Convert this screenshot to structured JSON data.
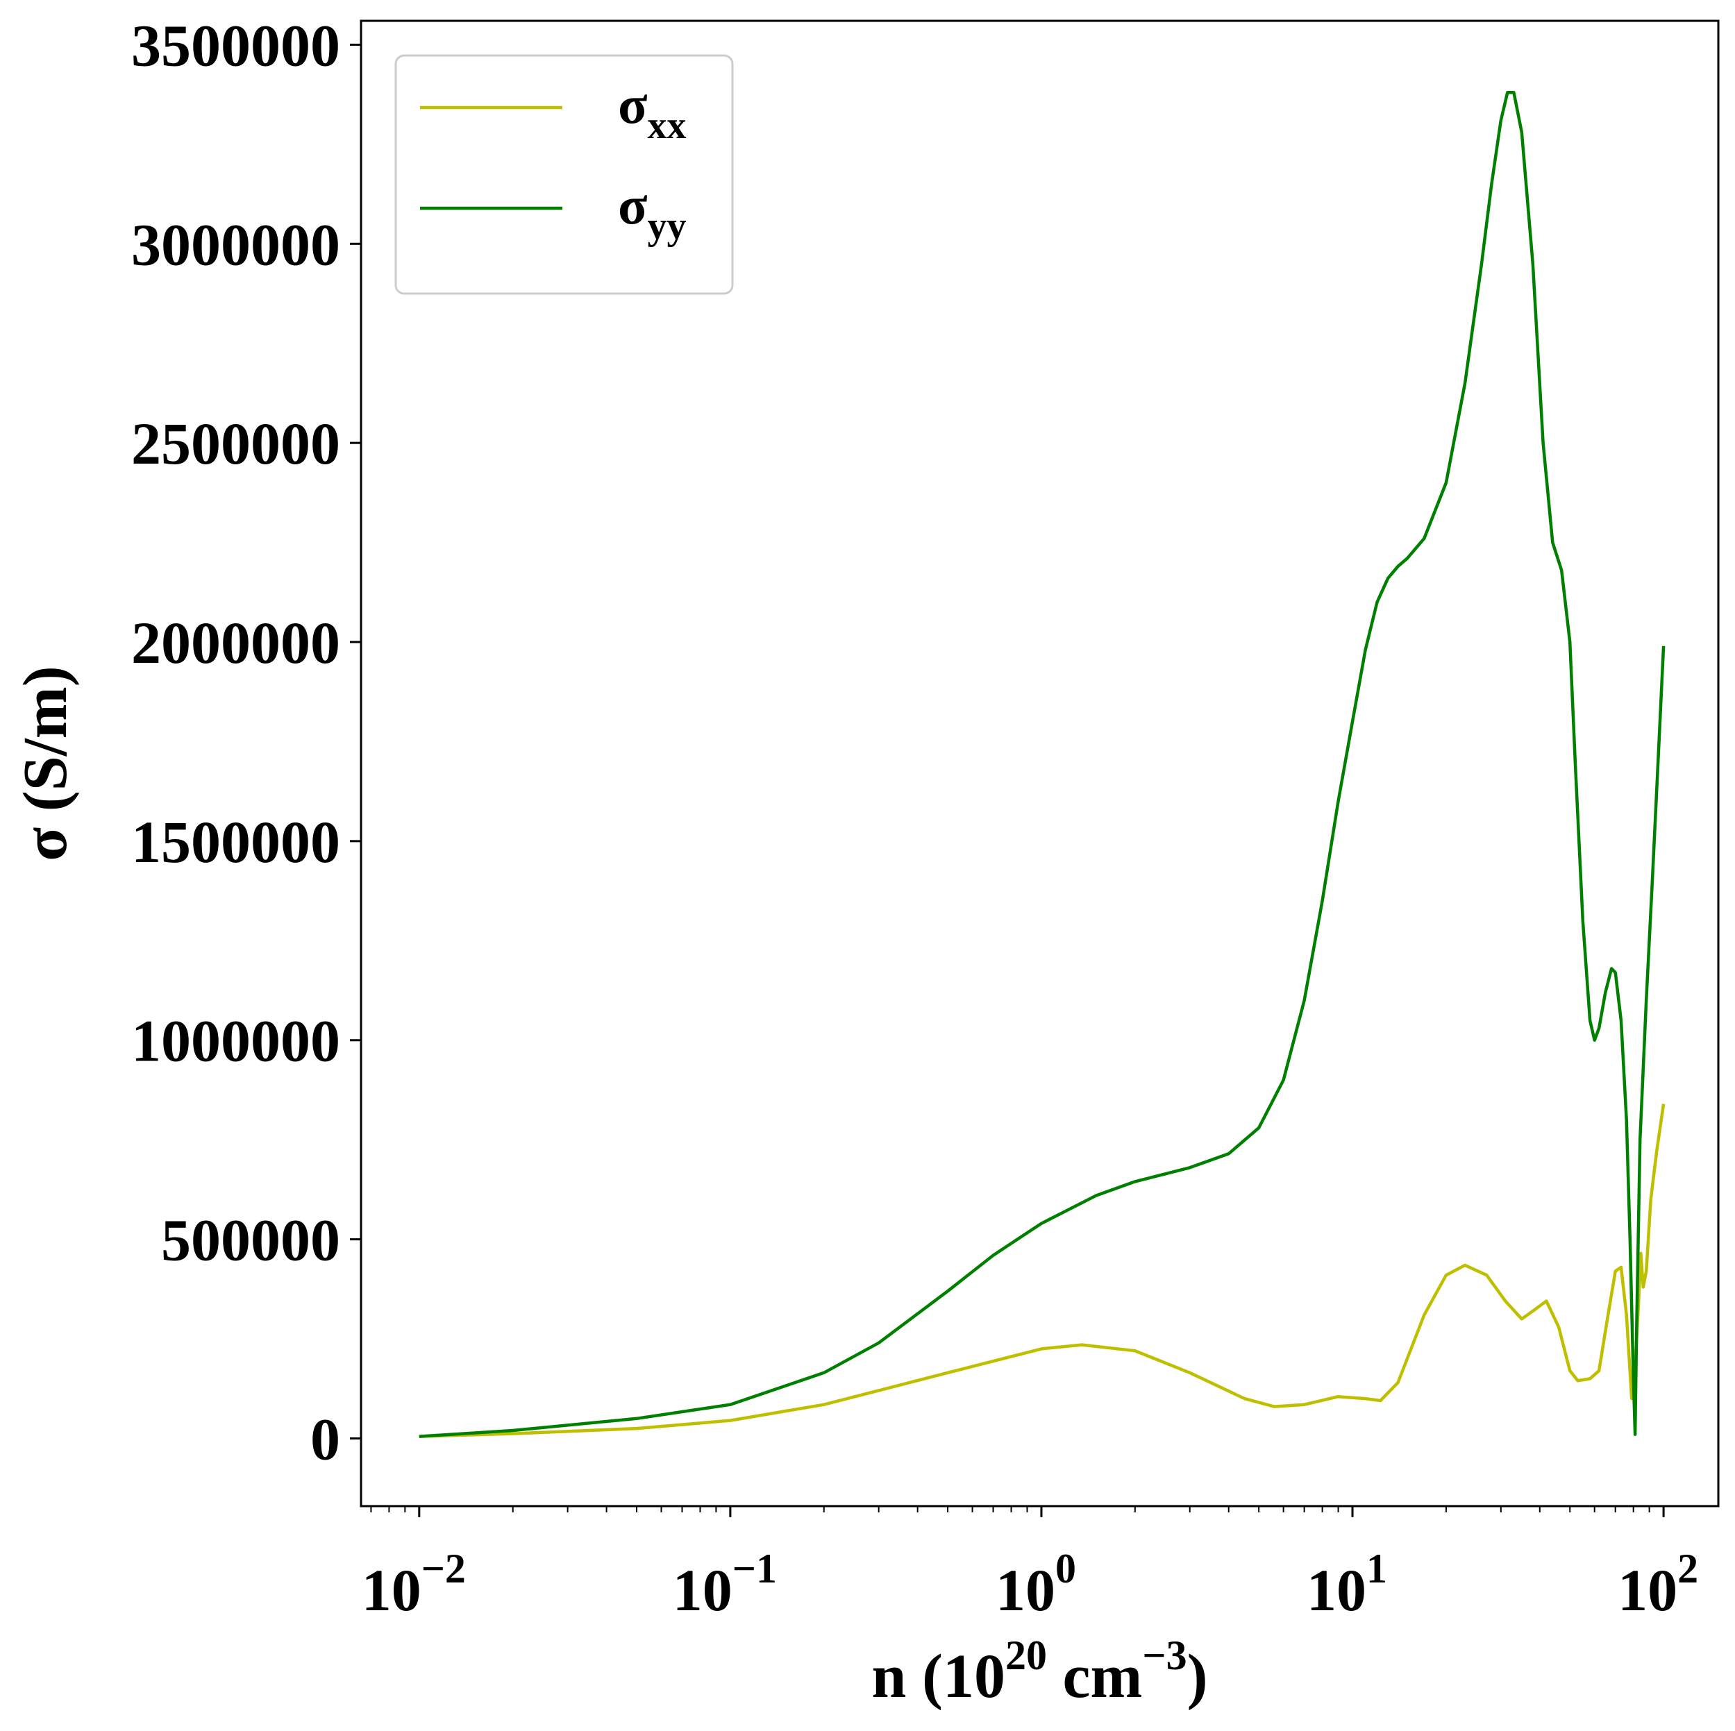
{
  "chart_data": {
    "type": "line",
    "x_scale": "log",
    "xlim": [
      0.0065,
      150
    ],
    "ylim": [
      -170000,
      3560000
    ],
    "xlabel": {
      "base": "n (10",
      "exp": "20",
      "mid": " cm",
      "exp2": "−3",
      "tail": ")"
    },
    "ylabel": "σ (S/m)",
    "x_ticks": [
      {
        "base": "10",
        "exp": "−2",
        "value": 0.01
      },
      {
        "base": "10",
        "exp": "−1",
        "value": 0.1
      },
      {
        "base": "10",
        "exp": "0",
        "value": 1
      },
      {
        "base": "10",
        "exp": "1",
        "value": 10
      },
      {
        "base": "10",
        "exp": "2",
        "value": 100
      }
    ],
    "y_ticks": [
      {
        "label": "0",
        "value": 0
      },
      {
        "label": "500000",
        "value": 500000
      },
      {
        "label": "1000000",
        "value": 1000000
      },
      {
        "label": "1500000",
        "value": 1500000
      },
      {
        "label": "2000000",
        "value": 2000000
      },
      {
        "label": "2500000",
        "value": 2500000
      },
      {
        "label": "3000000",
        "value": 3000000
      },
      {
        "label": "3500000",
        "value": 3500000
      }
    ],
    "grid": false,
    "legend_position": "top-left",
    "series": [
      {
        "name": "σ",
        "name_sub": "xx",
        "color": "#bfbf00",
        "x": [
          0.01,
          0.02,
          0.05,
          0.1,
          0.2,
          0.5,
          1.0,
          1.35,
          2.0,
          3.0,
          4.5,
          5.6,
          7.0,
          9.0,
          11.0,
          12.3,
          14.0,
          17.0,
          20.0,
          23.0,
          27.0,
          31.0,
          35.0,
          38.0,
          42.0,
          46.0,
          50.0,
          53.0,
          58.0,
          62.0,
          66.0,
          70.0,
          73.0,
          76.0,
          79.0,
          81.0,
          83.0,
          84.5,
          86.0,
          88.0,
          91.0,
          95.0,
          100.0
        ],
        "y": [
          5000,
          12000,
          25000,
          45000,
          85000,
          165000,
          225000,
          235000,
          220000,
          165000,
          100000,
          80000,
          85000,
          105000,
          100000,
          95000,
          140000,
          310000,
          410000,
          435000,
          410000,
          345000,
          300000,
          320000,
          345000,
          280000,
          170000,
          145000,
          150000,
          170000,
          300000,
          420000,
          430000,
          310000,
          100000,
          180000,
          330000,
          465000,
          380000,
          420000,
          600000,
          720000,
          840000
        ]
      },
      {
        "name": "σ",
        "name_sub": "yy",
        "color": "#008000",
        "x": [
          0.01,
          0.02,
          0.05,
          0.1,
          0.2,
          0.3,
          0.5,
          0.7,
          1.0,
          1.5,
          2.0,
          3.0,
          4.0,
          5.0,
          6.0,
          7.0,
          8.0,
          9.0,
          10.0,
          11.0,
          12.0,
          13.0,
          14.0,
          15.0,
          17.0,
          20.0,
          23.0,
          26.0,
          28.0,
          30.0,
          31.5,
          33.0,
          35.0,
          38.0,
          41.0,
          44.0,
          47.0,
          50.0,
          52.0,
          55.0,
          58.0,
          60.0,
          62.0,
          65.0,
          68.0,
          70.0,
          73.0,
          76.0,
          78.0,
          80.0,
          81.0,
          82.0,
          84.0,
          88.0,
          92.0,
          96.0,
          100.0
        ],
        "y": [
          5000,
          20000,
          50000,
          85000,
          165000,
          240000,
          370000,
          460000,
          540000,
          610000,
          645000,
          680000,
          715000,
          780000,
          900000,
          1100000,
          1350000,
          1600000,
          1800000,
          1980000,
          2100000,
          2160000,
          2190000,
          2210000,
          2260000,
          2400000,
          2650000,
          2950000,
          3150000,
          3310000,
          3380000,
          3380000,
          3280000,
          2950000,
          2500000,
          2250000,
          2180000,
          2000000,
          1700000,
          1300000,
          1050000,
          1000000,
          1030000,
          1120000,
          1180000,
          1170000,
          1050000,
          800000,
          500000,
          150000,
          10000,
          300000,
          750000,
          1100000,
          1400000,
          1700000,
          1990000
        ]
      }
    ]
  }
}
